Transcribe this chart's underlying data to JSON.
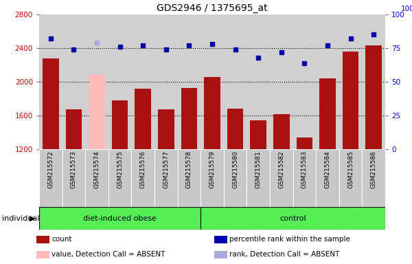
{
  "title": "GDS2946 / 1375695_at",
  "samples": [
    "GSM215572",
    "GSM215573",
    "GSM215574",
    "GSM215575",
    "GSM215576",
    "GSM215577",
    "GSM215578",
    "GSM215579",
    "GSM215580",
    "GSM215581",
    "GSM215582",
    "GSM215583",
    "GSM215584",
    "GSM215585",
    "GSM215586"
  ],
  "counts": [
    2280,
    1670,
    2090,
    1780,
    1920,
    1670,
    1930,
    2060,
    1680,
    1545,
    1620,
    1340,
    2040,
    2360,
    2430
  ],
  "absent_mask": [
    false,
    false,
    true,
    false,
    false,
    false,
    false,
    false,
    false,
    false,
    false,
    false,
    false,
    false,
    false
  ],
  "percentile_ranks": [
    82,
    74,
    79,
    76,
    77,
    74,
    77,
    78,
    74,
    68,
    72,
    64,
    77,
    82,
    85
  ],
  "absent_rank_mask": [
    false,
    false,
    true,
    false,
    false,
    false,
    false,
    false,
    false,
    false,
    false,
    false,
    false,
    false,
    false
  ],
  "group_divider": 7,
  "group_labels": [
    "diet-induced obese",
    "control"
  ],
  "ylim_left": [
    1200,
    2800
  ],
  "ylim_right": [
    0,
    100
  ],
  "yticks_left": [
    1200,
    1600,
    2000,
    2400,
    2800
  ],
  "yticks_right": [
    0,
    25,
    50,
    75,
    100
  ],
  "bar_color_normal": "#aa1111",
  "bar_color_absent": "#ffbbbb",
  "dot_color_normal": "#0000aa",
  "dot_color_absent": "#aaaadd",
  "plot_bg_color": "#d0d0d0",
  "label_bg_color": "#c8c8c8",
  "group_color": "#55ee55",
  "individual_label": "individual",
  "legend_items": [
    {
      "label": "count",
      "color": "#aa1111"
    },
    {
      "label": "percentile rank within the sample",
      "color": "#0000aa"
    },
    {
      "label": "value, Detection Call = ABSENT",
      "color": "#ffbbbb"
    },
    {
      "label": "rank, Detection Call = ABSENT",
      "color": "#aaaadd"
    }
  ]
}
